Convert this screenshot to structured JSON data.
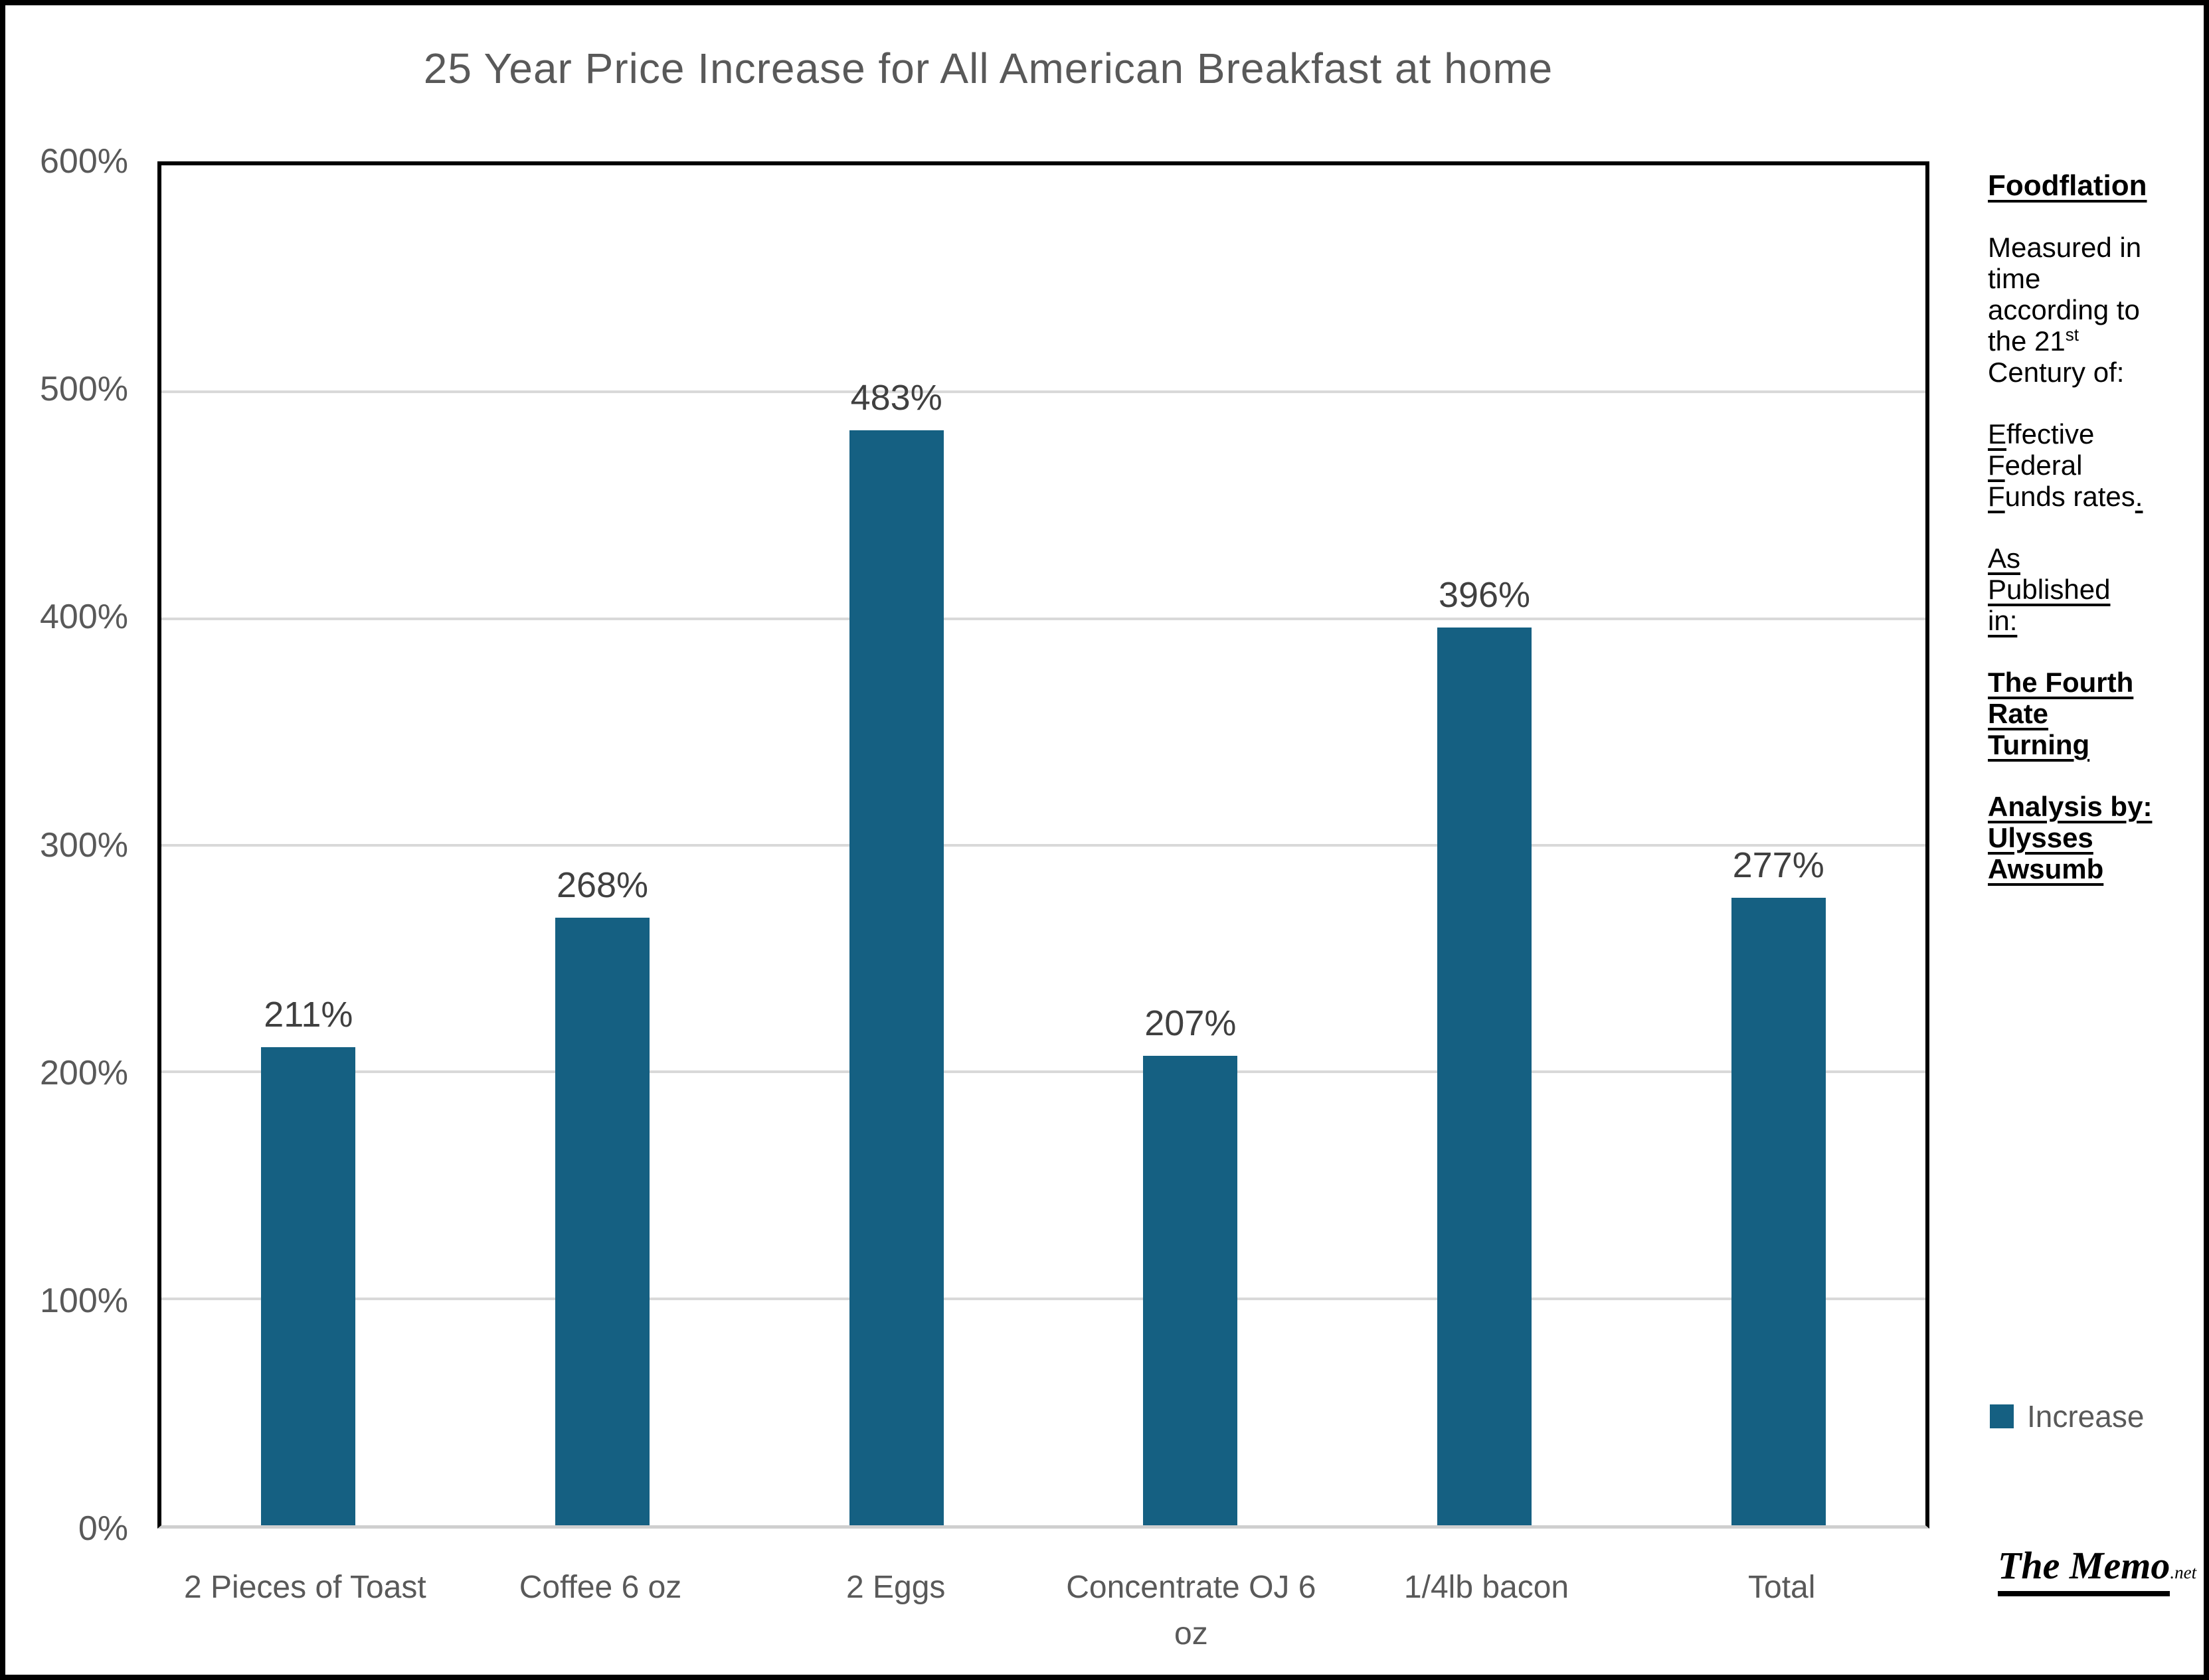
{
  "chart_data": {
    "type": "bar",
    "title": "25 Year Price Increase for All American Breakfast at home",
    "categories": [
      "2 Pieces of Toast",
      "Coffee 6 oz",
      "2 Eggs",
      "Concentrate OJ 6 oz",
      "1/4lb bacon",
      "Total"
    ],
    "series": [
      {
        "name": "Increase",
        "values": [
          211,
          268,
          483,
          207,
          396,
          277
        ]
      }
    ],
    "data_labels": [
      "211%",
      "268%",
      "483%",
      "207%",
      "396%",
      "277%"
    ],
    "xlabel": "",
    "ylabel": "",
    "ylim": [
      0,
      600
    ],
    "ytick_values": [
      0,
      100,
      200,
      300,
      400,
      500,
      600
    ],
    "ytick_labels": [
      "0%",
      "100%",
      "200%",
      "300%",
      "400%",
      "500%",
      "600%"
    ],
    "grid": true,
    "legend": {
      "label": "Increase",
      "position": "right"
    },
    "bar_color": "#156082",
    "gridline_color": "#D9D9D9",
    "title_color": "#595959",
    "label_color": "#404040"
  },
  "sidebar": {
    "heading": "Foodflation",
    "measured_lines": [
      "Measured in",
      "time",
      "according to"
    ],
    "measured_21": "the 21",
    "sup": "st",
    "century_line": "Century of:",
    "eff": {
      "l1": "E",
      "r1": "ffective",
      "l2": "F",
      "r2": "ederal",
      "l3": "F",
      "r3": "unds rates",
      "dot": "."
    },
    "as_lines": [
      "As",
      "Published",
      "in:"
    ],
    "fourth_lines": [
      "The Fourth",
      "Rate",
      "Turning"
    ],
    "analysis_lines": [
      "Analysis by:",
      "Ulysses",
      "Awsumb"
    ]
  },
  "footer_logo": {
    "main": "The Memo",
    "suffix": ".net"
  }
}
